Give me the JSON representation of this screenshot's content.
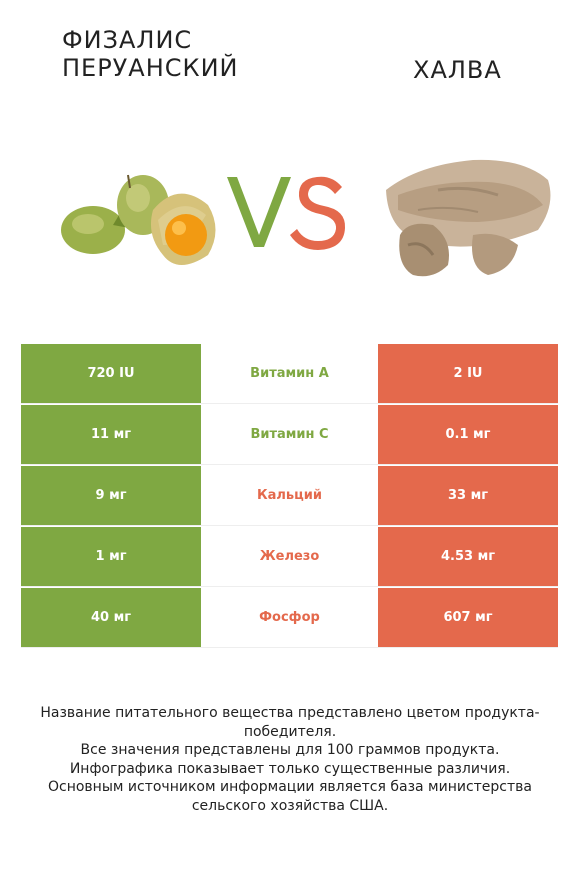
{
  "header": {
    "left_title": "ФИЗАЛИС\nПЕРУАНСКИЙ",
    "right_title": "ХАЛВА",
    "vs_colors": {
      "v": "#7fa842",
      "s": "#e4694c"
    }
  },
  "colors": {
    "left": "#7fa842",
    "right": "#e4694c"
  },
  "table": {
    "rows": [
      {
        "left": "720 IU",
        "nutrient": "Витамин A",
        "right": "2 IU",
        "winner_color": "#7fa842"
      },
      {
        "left": "11 мг",
        "nutrient": "Витамин C",
        "right": "0.1 мг",
        "winner_color": "#7fa842"
      },
      {
        "left": "9 мг",
        "nutrient": "Кальций",
        "right": "33 мг",
        "winner_color": "#e4694c"
      },
      {
        "left": "1 мг",
        "nutrient": "Железо",
        "right": "4.53 мг",
        "winner_color": "#e4694c"
      },
      {
        "left": "40 мг",
        "nutrient": "Фосфор",
        "right": "607 мг",
        "winner_color": "#e4694c"
      }
    ]
  },
  "footer": {
    "line1": "Название питательного вещества представлено цветом продукта-победителя.",
    "line2": "Все значения представлены для 100 граммов продукта.",
    "line3": "Инфографика показывает только существенные различия.",
    "line4": "Основным источником информации является база министерства сельского хозяйства США."
  }
}
